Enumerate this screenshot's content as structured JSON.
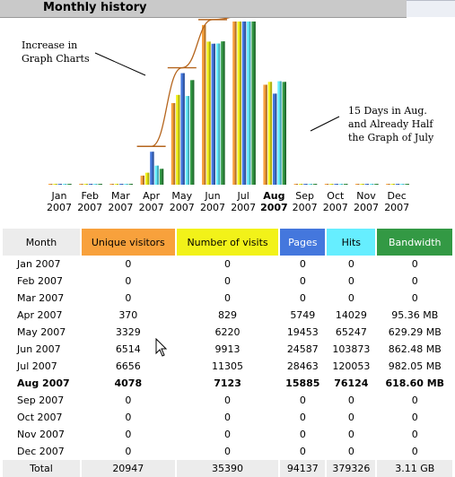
{
  "header": {
    "title": "Monthly history"
  },
  "annotations": {
    "left": "Increase in\nGraph Charts",
    "right": "15 Days in Aug.\nand Already Half\nthe Graph of July"
  },
  "colors": {
    "unique": "#f8a13c",
    "visits": "#f2f219",
    "pages": "#4477dd",
    "hits": "#66eeff",
    "bandwidth": "#339944",
    "trend": "#b5651d"
  },
  "table": {
    "headers": [
      "Month",
      "Unique visitors",
      "Number of visits",
      "Pages",
      "Hits",
      "Bandwidth"
    ],
    "rows": [
      [
        "Jan 2007",
        "0",
        "0",
        "0",
        "0",
        "0"
      ],
      [
        "Feb 2007",
        "0",
        "0",
        "0",
        "0",
        "0"
      ],
      [
        "Mar 2007",
        "0",
        "0",
        "0",
        "0",
        "0"
      ],
      [
        "Apr 2007",
        "370",
        "829",
        "5749",
        "14029",
        "95.36 MB"
      ],
      [
        "May 2007",
        "3329",
        "6220",
        "19453",
        "65247",
        "629.29 MB"
      ],
      [
        "Jun 2007",
        "6514",
        "9913",
        "24587",
        "103873",
        "862.48 MB"
      ],
      [
        "Jul 2007",
        "6656",
        "11305",
        "28463",
        "120053",
        "982.05 MB"
      ],
      [
        "Aug 2007",
        "4078",
        "7123",
        "15885",
        "76124",
        "618.60 MB"
      ],
      [
        "Sep 2007",
        "0",
        "0",
        "0",
        "0",
        "0"
      ],
      [
        "Oct 2007",
        "0",
        "0",
        "0",
        "0",
        "0"
      ],
      [
        "Nov 2007",
        "0",
        "0",
        "0",
        "0",
        "0"
      ],
      [
        "Dec 2007",
        "0",
        "0",
        "0",
        "0",
        "0"
      ]
    ],
    "total": [
      "Total",
      "20947",
      "35390",
      "94137",
      "379326",
      "3.11 GB"
    ]
  },
  "chart_data": {
    "type": "bar",
    "title": "Monthly history",
    "categories": [
      "Jan 2007",
      "Feb 2007",
      "Mar 2007",
      "Apr 2007",
      "May 2007",
      "Jun 2007",
      "Jul 2007",
      "Aug 2007",
      "Sep 2007",
      "Oct 2007",
      "Nov 2007",
      "Dec 2007"
    ],
    "x_tick_labels": [
      [
        "Jan",
        "2007"
      ],
      [
        "Feb",
        "2007"
      ],
      [
        "Mar",
        "2007"
      ],
      [
        "Apr",
        "2007"
      ],
      [
        "May",
        "2007"
      ],
      [
        "Jun",
        "2007"
      ],
      [
        "Jul",
        "2007"
      ],
      [
        "Aug",
        "2007"
      ],
      [
        "Sep",
        "2007"
      ],
      [
        "Oct",
        "2007"
      ],
      [
        "Nov",
        "2007"
      ],
      [
        "Dec",
        "2007"
      ]
    ],
    "highlight_category": "Aug 2007",
    "series": [
      {
        "name": "Unique visitors",
        "values": [
          0,
          0,
          0,
          370,
          3329,
          6514,
          6656,
          4078,
          0,
          0,
          0,
          0
        ]
      },
      {
        "name": "Number of visits",
        "values": [
          0,
          0,
          0,
          829,
          6220,
          9913,
          11305,
          7123,
          0,
          0,
          0,
          0
        ]
      },
      {
        "name": "Pages",
        "values": [
          0,
          0,
          0,
          5749,
          19453,
          24587,
          28463,
          15885,
          0,
          0,
          0,
          0
        ]
      },
      {
        "name": "Hits",
        "values": [
          0,
          0,
          0,
          14029,
          65247,
          103873,
          120053,
          76124,
          0,
          0,
          0,
          0
        ]
      },
      {
        "name": "Bandwidth",
        "values": [
          0,
          0,
          0,
          95.36,
          629.29,
          862.48,
          982.05,
          618.6,
          0,
          0,
          0,
          0
        ]
      }
    ],
    "trend_months": [
      "Apr 2007",
      "May 2007",
      "Jun 2007",
      "Jul 2007"
    ],
    "legend": "none",
    "grid": false
  }
}
